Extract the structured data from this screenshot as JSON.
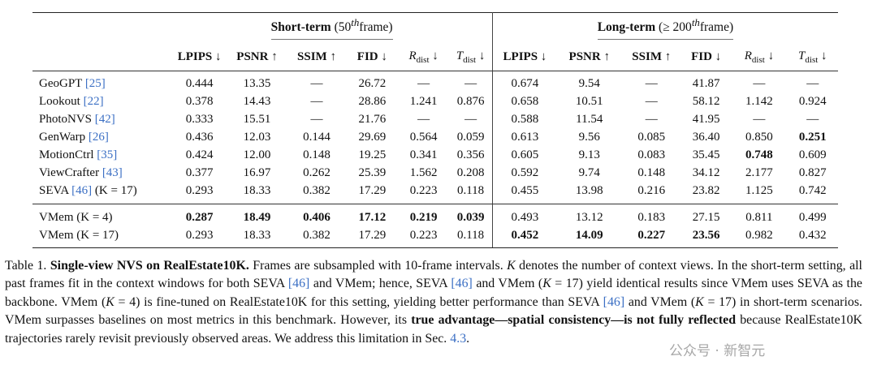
{
  "table": {
    "group_short_label": "Short-term",
    "group_short_paren": "(50",
    "group_short_sup": "th",
    "group_short_end": "frame)",
    "group_long_label": "Long-term",
    "group_long_paren": "(≥ 200",
    "group_long_sup": "th",
    "group_long_end": "frame)",
    "columns": [
      "LPIPS ↓",
      "PSNR ↑",
      "SSIM ↑",
      "FID ↓",
      "R_dist ↓",
      "T_dist ↓"
    ],
    "rdist_main": "R",
    "rdist_sub": "dist",
    "rdist_arrow": "↓",
    "tdist_main": "T",
    "tdist_sub": "dist",
    "tdist_arrow": "↓",
    "rows": [
      {
        "method": "GeoGPT",
        "cite": "[25]",
        "extra": "",
        "vals": [
          "0.444",
          "13.35",
          "—",
          "26.72",
          "—",
          "—",
          "0.674",
          "9.54",
          "—",
          "41.87",
          "—",
          "—"
        ],
        "bold": []
      },
      {
        "method": "Lookout",
        "cite": "[22]",
        "extra": "",
        "vals": [
          "0.378",
          "14.43",
          "—",
          "28.86",
          "1.241",
          "0.876",
          "0.658",
          "10.51",
          "—",
          "58.12",
          "1.142",
          "0.924"
        ],
        "bold": []
      },
      {
        "method": "PhotoNVS",
        "cite": "[42]",
        "extra": "",
        "vals": [
          "0.333",
          "15.51",
          "—",
          "21.76",
          "—",
          "—",
          "0.588",
          "11.54",
          "—",
          "41.95",
          "—",
          "—"
        ],
        "bold": []
      },
      {
        "method": "GenWarp",
        "cite": "[26]",
        "extra": "",
        "vals": [
          "0.436",
          "12.03",
          "0.144",
          "29.69",
          "0.564",
          "0.059",
          "0.613",
          "9.56",
          "0.085",
          "36.40",
          "0.850",
          "0.251"
        ],
        "bold": [
          11
        ]
      },
      {
        "method": "MotionCtrl",
        "cite": "[35]",
        "extra": "",
        "vals": [
          "0.424",
          "12.00",
          "0.148",
          "19.25",
          "0.341",
          "0.356",
          "0.605",
          "9.13",
          "0.083",
          "35.45",
          "0.748",
          "0.609"
        ],
        "bold": [
          10
        ]
      },
      {
        "method": "ViewCrafter",
        "cite": "[43]",
        "extra": "",
        "vals": [
          "0.377",
          "16.97",
          "0.262",
          "25.39",
          "1.562",
          "0.208",
          "0.592",
          "9.74",
          "0.148",
          "34.12",
          "2.177",
          "0.827"
        ],
        "bold": []
      },
      {
        "method": "SEVA",
        "cite": "[46]",
        "extra": "(K = 17)",
        "vals": [
          "0.293",
          "18.33",
          "0.382",
          "17.29",
          "0.223",
          "0.118",
          "0.455",
          "13.98",
          "0.216",
          "23.82",
          "1.125",
          "0.742"
        ],
        "bold": []
      },
      {
        "method": "VMem",
        "cite": "",
        "extra": "(K = 4)",
        "vals": [
          "0.287",
          "18.49",
          "0.406",
          "17.12",
          "0.219",
          "0.039",
          "0.493",
          "13.12",
          "0.183",
          "27.15",
          "0.811",
          "0.499"
        ],
        "bold": [
          0,
          1,
          2,
          3,
          4,
          5
        ]
      },
      {
        "method": "VMem",
        "cite": "",
        "extra": "(K = 17)",
        "vals": [
          "0.293",
          "18.33",
          "0.382",
          "17.29",
          "0.223",
          "0.118",
          "0.452",
          "14.09",
          "0.227",
          "23.56",
          "0.982",
          "0.432"
        ],
        "bold": [
          6,
          7,
          8,
          9
        ]
      }
    ]
  },
  "caption": {
    "label": "Table 1.",
    "title": "Single-view NVS on RealEstate10K.",
    "t1": "Frames are subsampled with 10-frame intervals.",
    "k1": "K",
    "t2": "denotes the number of context views. In the short-term setting, all past frames fit in the context windows for both SEVA",
    "c1": "[46]",
    "t3": "and VMem; hence, SEVA",
    "c2": "[46]",
    "t4": "and VMem (",
    "k2": "K",
    "t5": "= 17) yield identical results since VMem uses SEVA as the backbone. VMem (",
    "k3": "K",
    "t6": "= 4) is fine-tuned on RealEstate10K for this setting, yielding better performance than SEVA",
    "c3": "[46]",
    "t7": "and VMem (",
    "k4": "K",
    "t8": "= 17) in short-term scenarios. VMem surpasses baselines on most metrics in this benchmark. However, its",
    "bold2": "true advantage—spatial consistency—is not fully reflected",
    "t9": "because RealEstate10K trajectories rarely revisit previously observed areas. We address this limitation in Sec.",
    "sec": "4.3",
    "end": "."
  },
  "watermark": "公众号 · 新智元"
}
